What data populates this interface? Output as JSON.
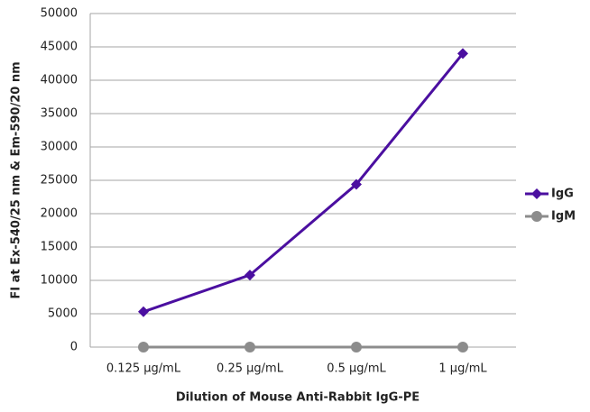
{
  "chart_data": {
    "type": "line",
    "xlabel": "Dilution of Mouse Anti-Rabbit IgG-PE",
    "ylabel": "FI at Ex-540/25 nm & Em-590/20 nm",
    "categories": [
      "0.125 µg/mL",
      "0.25 µg/mL",
      "0.5 µg/mL",
      "1 µg/mL"
    ],
    "series": [
      {
        "name": "IgG",
        "color": "#4b0fa0",
        "marker": "diamond",
        "values": [
          5300,
          10800,
          24400,
          44000
        ]
      },
      {
        "name": "IgM",
        "color": "#8c8c8c",
        "marker": "circle",
        "values": [
          0,
          0,
          0,
          0
        ]
      }
    ],
    "ylim": [
      0,
      50000
    ],
    "yticks": [
      0,
      5000,
      10000,
      15000,
      20000,
      25000,
      30000,
      35000,
      40000,
      45000,
      50000
    ],
    "grid": true,
    "legend": "right"
  }
}
